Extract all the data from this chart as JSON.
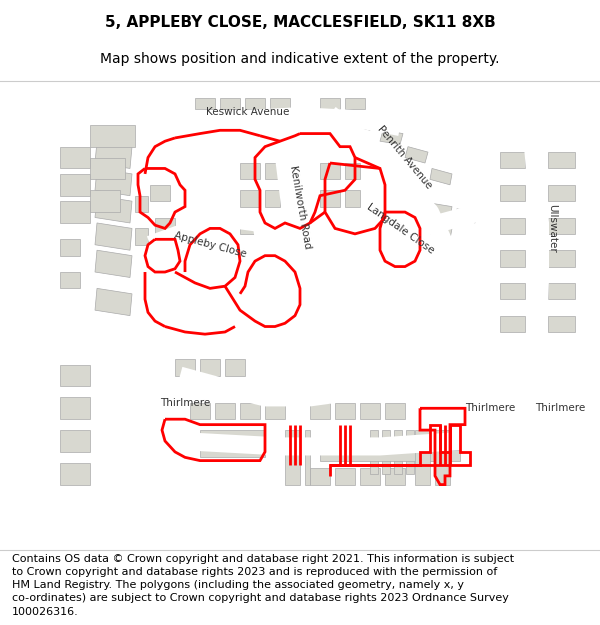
{
  "title_line1": "5, APPLEBY CLOSE, MACCLESFIELD, SK11 8XB",
  "title_line2": "Map shows position and indicative extent of the property.",
  "footer": "Contains OS data © Crown copyright and database right 2021. This information is subject\nto Crown copyright and database rights 2023 and is reproduced with the permission of\nHM Land Registry. The polygons (including the associated geometry, namely x, y\nco-ordinates) are subject to Crown copyright and database rights 2023 Ordnance Survey\n100026316.",
  "bg_color": "#f5f5f0",
  "building_fill": "#d8d8d0",
  "building_edge": "#aaaaaa",
  "road_color": "#ffffff",
  "red_boundary_color": "#ff0000",
  "map_bg": "#f0f0eb",
  "title_fontsize": 11,
  "subtitle_fontsize": 10,
  "footer_fontsize": 8,
  "street_label_fontsize": 7.5,
  "fig_width": 6.0,
  "fig_height": 6.25
}
